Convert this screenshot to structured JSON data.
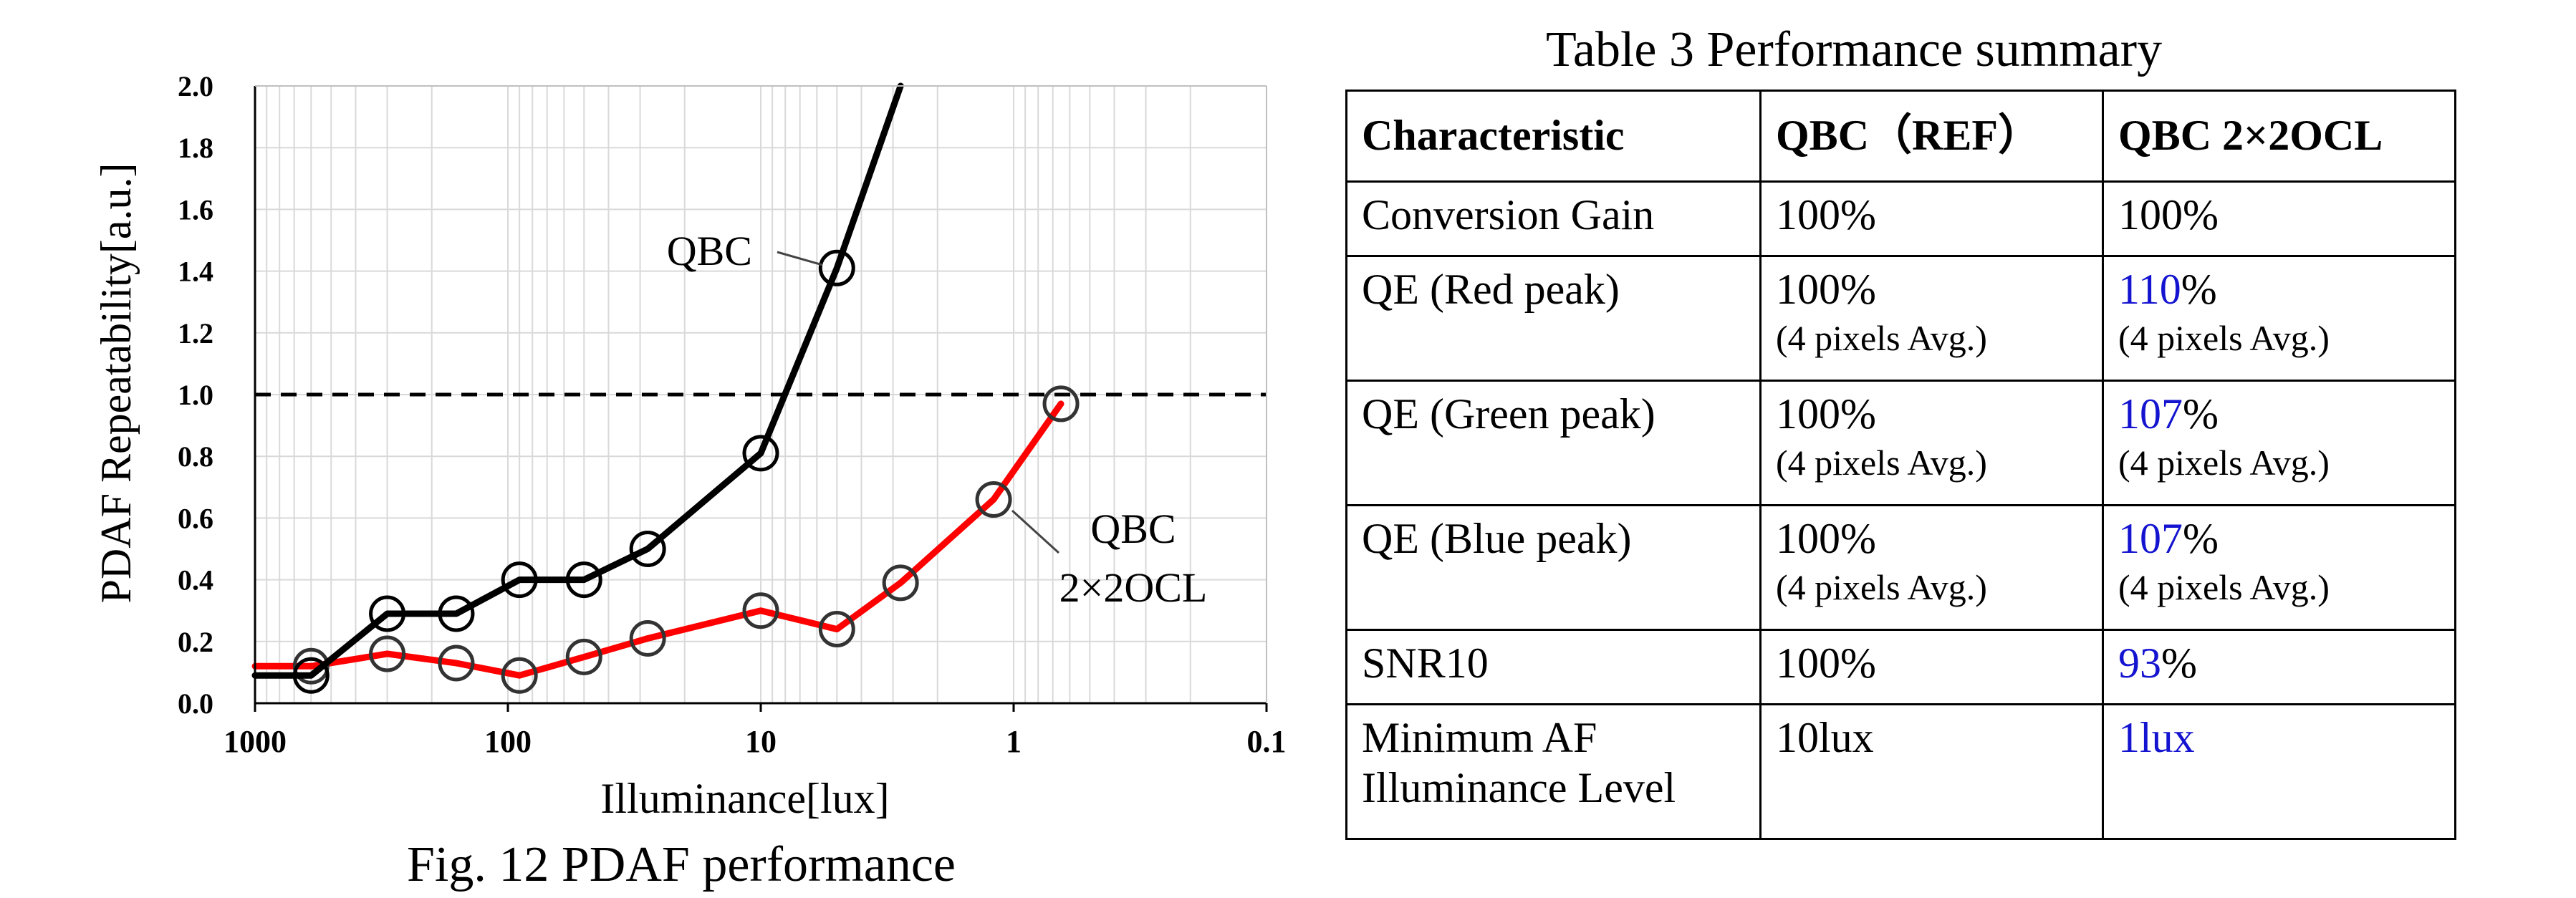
{
  "figure": {
    "caption": "Fig. 12 PDAF performance",
    "chart_data": {
      "type": "line",
      "title": "",
      "xlabel": "Illuminance[lux]",
      "ylabel": "PDAF Repeatability[a.u.]",
      "x_scale": "log",
      "x_direction": "descending",
      "xlim": [
        1000,
        0.1
      ],
      "ylim": [
        0,
        2.0
      ],
      "x_ticks": [
        1000,
        100,
        10,
        1,
        0.1
      ],
      "x_tick_labels": [
        "1000",
        "100",
        "10",
        "1",
        "0.1"
      ],
      "y_ticks": [
        0.0,
        0.2,
        0.4,
        0.6,
        0.8,
        1.0,
        1.2,
        1.4,
        1.6,
        1.8,
        2.0
      ],
      "y_tick_labels": [
        "0.0",
        "0.2",
        "0.4",
        "0.6",
        "0.8",
        "1.0",
        "1.2",
        "1.4",
        "1.6",
        "1.8",
        "2.0"
      ],
      "grid": true,
      "reference_line": {
        "y": 1.0,
        "style": "dashed"
      },
      "series": [
        {
          "name": "QBC",
          "label_lines": [
            "QBC"
          ],
          "color": "#000000",
          "x": [
            1000,
            600,
            300,
            160,
            90,
            50,
            28,
            10,
            5,
            2.8
          ],
          "y": [
            0.09,
            0.09,
            0.29,
            0.29,
            0.4,
            0.4,
            0.5,
            0.81,
            1.41,
            2.0
          ],
          "markers": [
            false,
            true,
            true,
            true,
            true,
            true,
            true,
            true,
            true,
            false
          ]
        },
        {
          "name": "QBC 2×2OCL",
          "label_lines": [
            "QBC",
            "2×2OCL"
          ],
          "color": "#ff0000",
          "x": [
            1000,
            600,
            300,
            160,
            90,
            50,
            28,
            10,
            5,
            2.8,
            1.2,
            0.65
          ],
          "y": [
            0.12,
            0.12,
            0.16,
            0.13,
            0.09,
            0.15,
            0.21,
            0.3,
            0.24,
            0.39,
            0.66,
            0.97
          ],
          "markers": [
            false,
            true,
            true,
            true,
            true,
            true,
            true,
            true,
            true,
            true,
            true,
            true
          ]
        }
      ]
    }
  },
  "table": {
    "title": "Table 3 Performance summary",
    "headers": [
      "Characteristic",
      "QBC（REF）",
      "QBC 2×2OCL"
    ],
    "rows": [
      {
        "characteristic": "Conversion Gain",
        "ref": "100%",
        "ref_note": "",
        "ocl_value": "100%",
        "ocl_suffix": "",
        "ocl_note": ""
      },
      {
        "characteristic": "QE (Red peak)",
        "ref": "100%",
        "ref_note": "(4 pixels Avg.)",
        "ocl_value": "110",
        "ocl_suffix": "%",
        "ocl_note": "(4 pixels Avg.)"
      },
      {
        "characteristic": "QE (Green peak)",
        "ref": "100%",
        "ref_note": "(4 pixels Avg.)",
        "ocl_value": "107",
        "ocl_suffix": "%",
        "ocl_note": "(4 pixels Avg.)"
      },
      {
        "characteristic": "QE (Blue peak)",
        "ref": "100%",
        "ref_note": "(4 pixels Avg.)",
        "ocl_value": "107",
        "ocl_suffix": "%",
        "ocl_note": "(4 pixels Avg.)"
      },
      {
        "characteristic": "SNR10",
        "ref": "100%",
        "ref_note": "",
        "ocl_value": "93",
        "ocl_suffix": "%",
        "ocl_note": ""
      },
      {
        "characteristic_lines": [
          "Minimum AF",
          "Illuminance Level"
        ],
        "ref": "10lux",
        "ref_note": "",
        "ocl_value": "1lux",
        "ocl_suffix": "",
        "ocl_note": ""
      }
    ]
  },
  "colors": {
    "highlight": "#1414d0",
    "qbc": "#000000",
    "ocl": "#ff0000"
  }
}
